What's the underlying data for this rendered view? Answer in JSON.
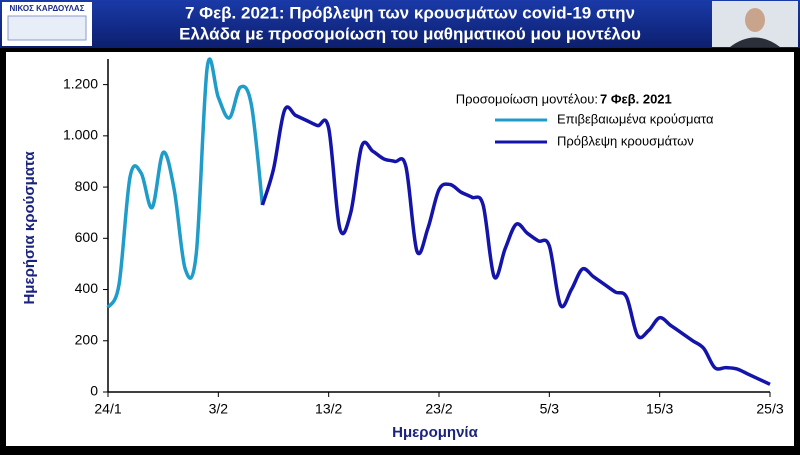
{
  "header": {
    "logo_name": "ΝΙΚΟΣ ΚΑΡΔΟΥΛΑΣ",
    "title_line1": "7 Φεβ. 2021:  Πρόβλεψη  των  κρουσμάτων  covid-19  στην",
    "title_line2": "Ελλάδα  με  προσομοίωση του  μαθηματικού μου  μοντέλου"
  },
  "chart_data": {
    "type": "line",
    "x_label": "Ημερομηνία",
    "y_label": "Ημερήσια κρούσματα",
    "legend_title": "Προσομοίωση μοντέλου: ",
    "legend_title_date": "7 Φεβ. 2021",
    "legend_position": "upper right",
    "grid": false,
    "categories": [
      "24/1",
      null,
      null,
      null,
      null,
      null,
      null,
      null,
      null,
      null,
      "3/2",
      null,
      null,
      null,
      null,
      null,
      null,
      null,
      null,
      null,
      "13/2",
      null,
      null,
      null,
      null,
      null,
      null,
      null,
      null,
      null,
      "23/2",
      null,
      null,
      null,
      null,
      null,
      null,
      null,
      null,
      null,
      "5/3",
      null,
      null,
      null,
      null,
      null,
      null,
      null,
      null,
      null,
      "15/3",
      null,
      null,
      null,
      null,
      null,
      null,
      null,
      null,
      null,
      "25/3"
    ],
    "ylim": [
      0,
      1300
    ],
    "yticks": [
      0,
      200,
      400,
      600,
      800,
      {
        "value": 1000,
        "label": "1.000"
      },
      {
        "value": 1200,
        "label": "1.200"
      }
    ],
    "series": [
      {
        "name": "Επιβεβαιωμένα κρούσματα",
        "color": "#1f9cc9",
        "values": [
          330,
          420,
          840,
          855,
          720,
          935,
          790,
          480,
          540,
          1270,
          1150,
          1070,
          1190,
          1120,
          730,
          null,
          null,
          null,
          null,
          null,
          null,
          null,
          null,
          null,
          null,
          null,
          null,
          null,
          null,
          null,
          null,
          null,
          null,
          null,
          null,
          null,
          null,
          null,
          null,
          null,
          null,
          null,
          null,
          null,
          null,
          null,
          null,
          null,
          null,
          null,
          null,
          null,
          null,
          null,
          null,
          null,
          null,
          null,
          null,
          null,
          null
        ]
      },
      {
        "name": "Πρόβλεψη κρουσμάτων",
        "color": "#1414aa",
        "values": [
          null,
          null,
          null,
          null,
          null,
          null,
          null,
          null,
          null,
          null,
          null,
          null,
          null,
          null,
          730,
          870,
          1100,
          1080,
          1060,
          1040,
          1030,
          640,
          700,
          960,
          940,
          910,
          900,
          880,
          550,
          640,
          790,
          810,
          780,
          760,
          730,
          450,
          560,
          655,
          620,
          590,
          570,
          340,
          400,
          480,
          450,
          420,
          390,
          370,
          220,
          240,
          290,
          260,
          230,
          200,
          170,
          95,
          95,
          90,
          70,
          50,
          30
        ]
      }
    ]
  }
}
